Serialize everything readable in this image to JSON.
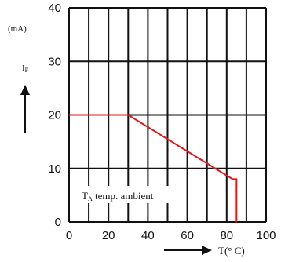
{
  "chart_data": {
    "type": "line",
    "title": "",
    "y_unit": "(mA)",
    "y_label_main": "I",
    "y_label_sub": "F",
    "x_label": "T(° C)",
    "x_ticks": [
      0,
      20,
      40,
      60,
      80,
      100
    ],
    "y_ticks": [
      0,
      10,
      20,
      30,
      40
    ],
    "xlim": [
      0,
      100
    ],
    "ylim": [
      0,
      40
    ],
    "grid": true,
    "series": [
      {
        "points": [
          {
            "x": 0,
            "y": 20
          },
          {
            "x": 30,
            "y": 20
          },
          {
            "x": 83,
            "y": 8
          },
          {
            "x": 85,
            "y": 8
          },
          {
            "x": 85,
            "y": 0
          }
        ]
      }
    ],
    "annotation": {
      "main": "T",
      "sub": "A",
      "rest": " temp. ambient"
    },
    "colors": {
      "series": "#e01818",
      "grid": "#111111",
      "text": "#111111"
    }
  }
}
